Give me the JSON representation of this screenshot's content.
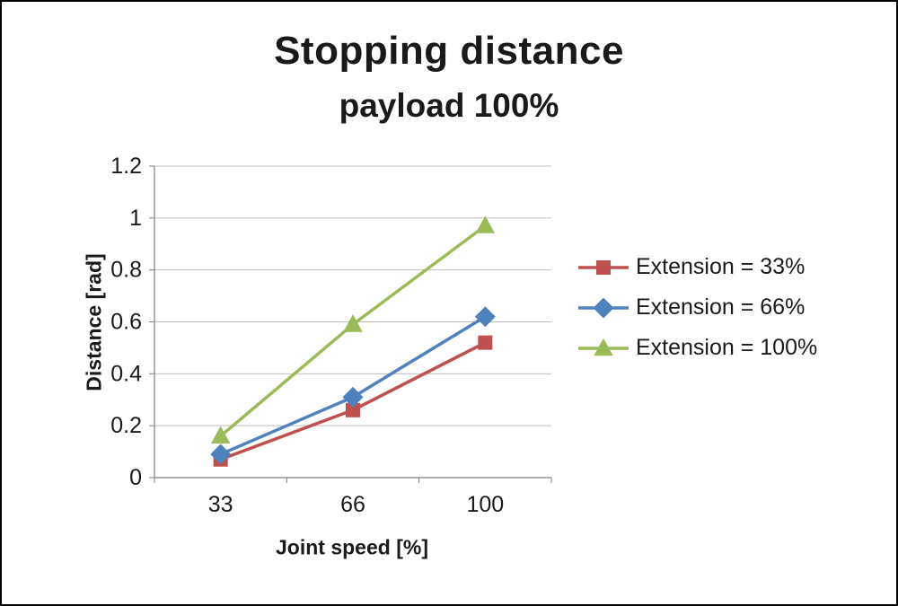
{
  "chart_data": {
    "type": "line",
    "title": "Stopping distance",
    "subtitle": "payload 100%",
    "xlabel": "Joint speed [%]",
    "ylabel": "Distance [rad]",
    "categories": [
      "33",
      "66",
      "100"
    ],
    "series": [
      {
        "name": "Extension = 33%",
        "color": "#c0504d",
        "marker": "square",
        "values": [
          0.07,
          0.26,
          0.52
        ]
      },
      {
        "name": "Extension = 66%",
        "color": "#4f81bd",
        "marker": "diamond",
        "values": [
          0.09,
          0.31,
          0.62
        ]
      },
      {
        "name": "Extension = 100%",
        "color": "#9bbb59",
        "marker": "triangle",
        "values": [
          0.16,
          0.59,
          0.97
        ]
      }
    ],
    "ylim": [
      0,
      1.2
    ],
    "ytick_labels": [
      "0",
      "0.2",
      "0.4",
      "0.6",
      "0.8",
      "1",
      "1.2"
    ],
    "grid": true,
    "legend_position": "right",
    "colors": {
      "gridline": "#bfbfbf",
      "axis": "#7f7f7f",
      "tick_text": "#1a1a1a"
    }
  }
}
